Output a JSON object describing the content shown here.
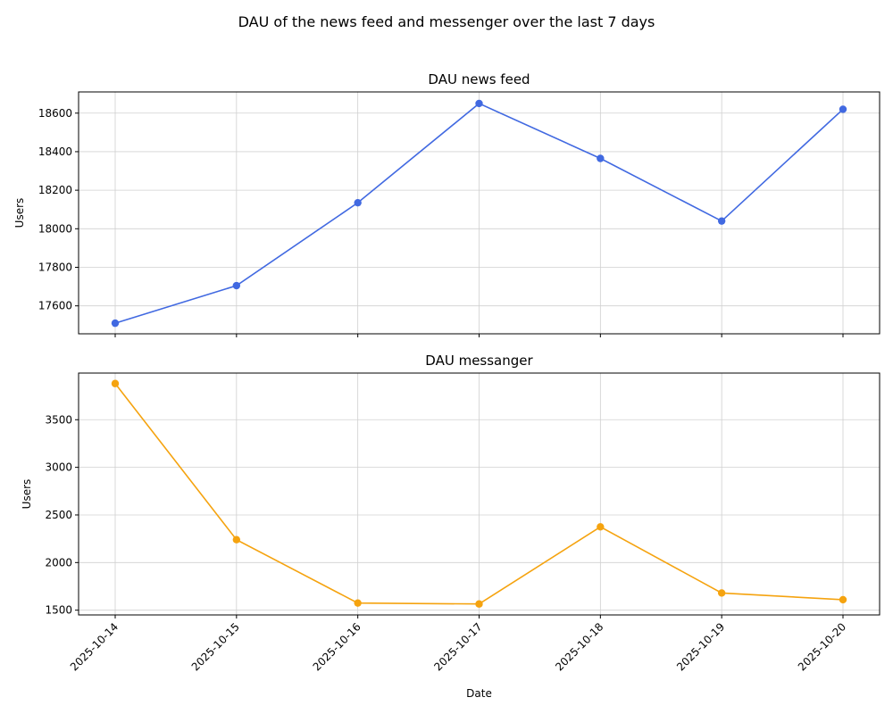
{
  "suptitle": "DAU of the news feed and messenger over the last 7 days",
  "chart_data": [
    {
      "type": "line",
      "title": "DAU news feed",
      "xlabel": "",
      "ylabel": "Users",
      "x": [
        "2025-10-14",
        "2025-10-15",
        "2025-10-16",
        "2025-10-17",
        "2025-10-18",
        "2025-10-19",
        "2025-10-20"
      ],
      "series": [
        {
          "color": "#4169e1",
          "values": [
            17510,
            17705,
            18135,
            18650,
            18365,
            18040,
            18620
          ]
        }
      ],
      "ylim": [
        17455,
        18710
      ],
      "yticks": [
        17600,
        17800,
        18000,
        18200,
        18400,
        18600
      ],
      "grid": true,
      "x_tick_labels_visible": false
    },
    {
      "type": "line",
      "title": "DAU messanger",
      "xlabel": "Date",
      "ylabel": "Users",
      "x": [
        "2025-10-14",
        "2025-10-15",
        "2025-10-16",
        "2025-10-17",
        "2025-10-18",
        "2025-10-19",
        "2025-10-20"
      ],
      "series": [
        {
          "color": "#f5a30f",
          "values": [
            3880,
            2240,
            1575,
            1565,
            2375,
            1680,
            1610
          ]
        }
      ],
      "ylim": [
        1450,
        3990
      ],
      "yticks": [
        1500,
        2000,
        2500,
        3000,
        3500
      ],
      "grid": true,
      "x_tick_labels_visible": true
    }
  ]
}
